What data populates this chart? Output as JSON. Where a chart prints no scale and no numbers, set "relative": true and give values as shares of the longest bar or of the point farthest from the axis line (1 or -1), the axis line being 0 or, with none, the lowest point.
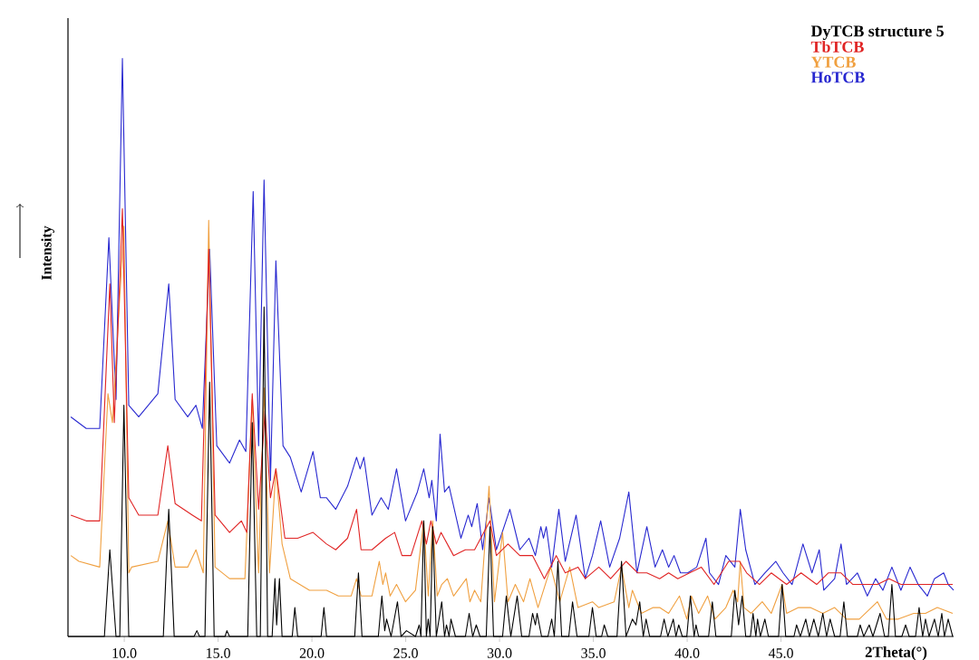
{
  "chart_data": {
    "type": "line",
    "relative": true,
    "xlabel": "2Theta(°)",
    "ylabel": "Intensity",
    "xlim": [
      7,
      54.2
    ],
    "xticks": [
      {
        "value": 10,
        "label": "10.0"
      },
      {
        "value": 15,
        "label": "15.0"
      },
      {
        "value": 20,
        "label": "20.0"
      },
      {
        "value": 25,
        "label": "25.0"
      },
      {
        "value": 30,
        "label": "30.0"
      },
      {
        "value": 35,
        "label": "35.0"
      },
      {
        "value": 40,
        "label": "40.0"
      },
      {
        "value": 45,
        "label": "45.0"
      }
    ],
    "legend": "top right",
    "series": [
      {
        "name": "DyTCB structure 5",
        "color": "#000000",
        "x": [
          7.0,
          8.94,
          9.23,
          9.56,
          9.76,
          9.98,
          10.24,
          12.08,
          12.37,
          12.66,
          13.72,
          13.87,
          14.01,
          14.3,
          14.55,
          14.79,
          15.37,
          15.47,
          15.61,
          16.58,
          16.82,
          17.06,
          17.25,
          17.45,
          17.64,
          17.88,
          18.03,
          18.12,
          18.27,
          18.41,
          18.95,
          19.09,
          19.24,
          20.49,
          20.64,
          20.78,
          22.28,
          22.48,
          22.67,
          23.54,
          23.73,
          23.88,
          23.98,
          24.22,
          24.56,
          24.75,
          25.04,
          25.52,
          25.72,
          25.81,
          25.96,
          26.1,
          26.2,
          26.3,
          26.44,
          26.63,
          26.92,
          27.07,
          27.17,
          27.31,
          27.41,
          27.65,
          28.18,
          28.38,
          28.57,
          28.76,
          28.96,
          29.29,
          29.49,
          29.68,
          30.16,
          30.36,
          30.6,
          30.94,
          31.18,
          31.57,
          31.76,
          31.91,
          32.0,
          32.24,
          32.58,
          32.78,
          32.92,
          33.11,
          33.31,
          33.69,
          33.89,
          34.13,
          34.76,
          34.95,
          35.15,
          35.44,
          35.58,
          35.77,
          36.26,
          36.5,
          36.74,
          37.08,
          37.27,
          37.47,
          37.66,
          37.81,
          38.0,
          38.58,
          38.77,
          38.97,
          39.26,
          39.4,
          39.55,
          39.74,
          39.98,
          40.17,
          40.37,
          40.47,
          40.61,
          41.14,
          41.34,
          41.53,
          42.35,
          42.54,
          42.74,
          42.93,
          43.12,
          43.37,
          43.51,
          43.66,
          43.75,
          43.9,
          44.14,
          44.33,
          44.87,
          45.06,
          45.25,
          45.69,
          45.83,
          46.03,
          46.32,
          46.51,
          46.75,
          46.99,
          47.23,
          47.43,
          47.62,
          47.86,
          48.15,
          48.35,
          48.54,
          49.07,
          49.22,
          49.41,
          49.7,
          49.9,
          50.28,
          50.52,
          50.72,
          50.91,
          51.1,
          51.44,
          51.64,
          51.83,
          52.17,
          52.36,
          52.55,
          52.7,
          52.89,
          53.18,
          53.38,
          53.57,
          53.71,
          53.91,
          54.15
        ],
        "values": [
          0,
          0,
          0.15,
          0,
          0,
          0.4,
          0,
          0,
          0.22,
          0,
          0,
          0.01,
          0,
          0,
          0.44,
          0,
          0,
          0.01,
          0,
          0,
          0.37,
          0,
          0,
          0.57,
          0,
          0,
          0.1,
          0.02,
          0.1,
          0,
          0,
          0.05,
          0,
          0,
          0.05,
          0,
          0,
          0.11,
          0,
          0,
          0.07,
          0.01,
          0.03,
          0,
          0.06,
          0,
          0.01,
          0,
          0.02,
          0,
          0.2,
          0,
          0.03,
          0,
          0.19,
          0,
          0.06,
          0,
          0.02,
          0,
          0.03,
          0,
          0,
          0.04,
          0,
          0.02,
          0,
          0,
          0.19,
          0,
          0,
          0.07,
          0,
          0.07,
          0,
          0,
          0.04,
          0.02,
          0.04,
          0,
          0,
          0.03,
          0,
          0.13,
          0,
          0,
          0.06,
          0,
          0,
          0.05,
          0,
          0,
          0.02,
          0,
          0,
          0.13,
          0,
          0.03,
          0.02,
          0.06,
          0,
          0.03,
          0,
          0,
          0.03,
          0,
          0.03,
          0,
          0.02,
          0,
          0,
          0.07,
          0,
          0.02,
          0,
          0,
          0.06,
          0,
          0,
          0.08,
          0.02,
          0.07,
          0,
          0,
          0.04,
          0,
          0.03,
          0,
          0.03,
          0,
          0,
          0.09,
          0,
          0,
          0.02,
          0,
          0.03,
          0,
          0.03,
          0,
          0.04,
          0,
          0.03,
          0,
          0,
          0.06,
          0,
          0,
          0.02,
          0,
          0.02,
          0,
          0.04,
          0,
          0,
          0.09,
          0,
          0,
          0.02,
          0,
          0,
          0.05,
          0,
          0.03,
          0,
          0.03,
          0,
          0.04,
          0,
          0.03,
          0
        ]
      },
      {
        "name": "TbTCB",
        "color": "#e02424",
        "x": [
          7.15,
          7.97,
          8.69,
          9.23,
          9.47,
          9.9,
          10.24,
          10.77,
          11.79,
          12.32,
          12.71,
          13.63,
          14.11,
          14.5,
          14.84,
          15.61,
          16.24,
          16.53,
          16.82,
          17.16,
          17.5,
          17.79,
          18.08,
          18.56,
          19.24,
          20.06,
          20.78,
          21.27,
          21.9,
          22.38,
          22.62,
          23.2,
          23.93,
          24.41,
          24.8,
          25.28,
          25.86,
          26.1,
          26.34,
          26.63,
          26.88,
          27.55,
          28.18,
          28.67,
          29.49,
          29.83,
          30.45,
          31.08,
          31.76,
          32.39,
          33.02,
          33.5,
          34.18,
          34.57,
          35.29,
          35.92,
          36.74,
          37.37,
          37.85,
          38.53,
          39.01,
          39.5,
          40.13,
          40.75,
          41.43,
          42.21,
          42.79,
          43.17,
          43.85,
          44.48,
          45.3,
          46.07,
          46.9,
          47.52,
          48.2,
          48.83,
          49.46,
          50.14,
          50.76,
          51.39,
          52.07,
          52.7,
          53.33,
          54.15
        ],
        "values": [
          0.21,
          0.2,
          0.2,
          0.61,
          0.37,
          0.74,
          0.24,
          0.21,
          0.21,
          0.33,
          0.23,
          0.21,
          0.2,
          0.67,
          0.21,
          0.18,
          0.2,
          0.18,
          0.42,
          0.22,
          0.39,
          0.24,
          0.29,
          0.17,
          0.17,
          0.18,
          0.16,
          0.15,
          0.17,
          0.22,
          0.15,
          0.15,
          0.17,
          0.18,
          0.14,
          0.14,
          0.2,
          0.16,
          0.2,
          0.16,
          0.18,
          0.14,
          0.15,
          0.15,
          0.2,
          0.14,
          0.16,
          0.14,
          0.14,
          0.1,
          0.14,
          0.11,
          0.12,
          0.1,
          0.12,
          0.1,
          0.13,
          0.11,
          0.11,
          0.1,
          0.11,
          0.1,
          0.11,
          0.12,
          0.09,
          0.13,
          0.13,
          0.11,
          0.09,
          0.11,
          0.09,
          0.11,
          0.09,
          0.11,
          0.11,
          0.09,
          0.09,
          0.09,
          0.1,
          0.09,
          0.09,
          0.09,
          0.09,
          0.09
        ]
      },
      {
        "name": "YTCB",
        "color": "#f0a040",
        "x": [
          7.15,
          7.58,
          8.69,
          9.13,
          9.37,
          9.98,
          10.24,
          10.39,
          11.79,
          12.32,
          12.71,
          13.38,
          13.82,
          14.21,
          14.5,
          14.84,
          15.61,
          16.43,
          16.82,
          17.16,
          17.45,
          17.74,
          18.08,
          18.41,
          18.85,
          19.87,
          20.78,
          21.41,
          22.09,
          22.38,
          22.62,
          23.2,
          23.59,
          23.78,
          23.93,
          24.17,
          24.51,
          24.99,
          25.52,
          25.96,
          26.2,
          26.44,
          26.68,
          26.92,
          27.22,
          27.55,
          28.23,
          28.42,
          28.67,
          29.0,
          29.44,
          29.73,
          30.16,
          30.45,
          30.84,
          31.28,
          31.62,
          32.05,
          32.73,
          33.21,
          33.74,
          34.18,
          34.95,
          35.29,
          36.11,
          36.5,
          36.89,
          37.08,
          37.56,
          38.19,
          38.53,
          39.01,
          39.59,
          39.98,
          40.22,
          40.61,
          41.09,
          41.48,
          42.06,
          42.45,
          42.69,
          42.83,
          43.03,
          43.41,
          44.0,
          44.48,
          45.06,
          45.3,
          45.93,
          46.56,
          47.23,
          47.86,
          48.49,
          49.17,
          50.14,
          50.62,
          51.25,
          52.07,
          52.7,
          53.33,
          54.15
        ],
        "values": [
          0.14,
          0.13,
          0.12,
          0.42,
          0.37,
          0.71,
          0.11,
          0.12,
          0.13,
          0.2,
          0.12,
          0.12,
          0.15,
          0.11,
          0.72,
          0.12,
          0.1,
          0.1,
          0.41,
          0.11,
          0.43,
          0.11,
          0.29,
          0.16,
          0.1,
          0.08,
          0.08,
          0.07,
          0.07,
          0.1,
          0.07,
          0.07,
          0.13,
          0.09,
          0.11,
          0.07,
          0.09,
          0.06,
          0.08,
          0.2,
          0.07,
          0.2,
          0.07,
          0.09,
          0.1,
          0.07,
          0.1,
          0.06,
          0.08,
          0.06,
          0.26,
          0.06,
          0.18,
          0.06,
          0.09,
          0.06,
          0.1,
          0.05,
          0.12,
          0.06,
          0.12,
          0.05,
          0.06,
          0.05,
          0.06,
          0.12,
          0.05,
          0.08,
          0.04,
          0.05,
          0.05,
          0.04,
          0.07,
          0.03,
          0.07,
          0.04,
          0.07,
          0.03,
          0.05,
          0.08,
          0.06,
          0.13,
          0.05,
          0.04,
          0.06,
          0.04,
          0.09,
          0.04,
          0.05,
          0.05,
          0.04,
          0.05,
          0.03,
          0.03,
          0.06,
          0.03,
          0.03,
          0.04,
          0.04,
          0.05,
          0.04
        ]
      },
      {
        "name": "HoTCB",
        "color": "#2828d0",
        "x": [
          7.15,
          7.97,
          8.69,
          9.18,
          9.56,
          9.9,
          10.24,
          10.77,
          11.79,
          12.37,
          12.71,
          13.38,
          13.82,
          14.16,
          14.55,
          14.93,
          15.61,
          16.14,
          16.48,
          16.87,
          17.16,
          17.45,
          17.79,
          18.08,
          18.46,
          18.85,
          19.43,
          20.06,
          20.45,
          20.78,
          21.27,
          21.9,
          22.38,
          22.57,
          22.77,
          23.2,
          23.69,
          24.07,
          24.51,
          24.99,
          25.62,
          25.96,
          26.25,
          26.39,
          26.63,
          26.83,
          27.07,
          27.31,
          27.94,
          28.33,
          28.52,
          28.81,
          29.1,
          29.44,
          29.83,
          30.55,
          31.08,
          31.57,
          31.91,
          32.2,
          32.34,
          32.49,
          32.78,
          33.16,
          33.5,
          34.08,
          34.57,
          34.95,
          35.39,
          35.87,
          36.4,
          36.89,
          37.32,
          37.85,
          38.29,
          38.68,
          39.01,
          39.3,
          39.64,
          40.03,
          40.51,
          41.0,
          41.19,
          41.67,
          42.06,
          42.54,
          42.83,
          43.12,
          43.61,
          44.14,
          44.72,
          45.11,
          45.59,
          46.17,
          46.65,
          47.04,
          47.28,
          47.86,
          48.2,
          48.49,
          49.07,
          49.6,
          50.04,
          50.43,
          50.91,
          51.39,
          51.88,
          52.31,
          52.8,
          53.18,
          53.67,
          53.91,
          54.2
        ],
        "values": [
          0.38,
          0.36,
          0.36,
          0.69,
          0.41,
          1.0,
          0.4,
          0.38,
          0.42,
          0.61,
          0.41,
          0.38,
          0.4,
          0.36,
          0.67,
          0.33,
          0.3,
          0.34,
          0.32,
          0.77,
          0.33,
          0.79,
          0.27,
          0.65,
          0.33,
          0.31,
          0.25,
          0.32,
          0.24,
          0.24,
          0.22,
          0.26,
          0.31,
          0.29,
          0.31,
          0.21,
          0.24,
          0.22,
          0.29,
          0.2,
          0.25,
          0.29,
          0.24,
          0.27,
          0.2,
          0.35,
          0.25,
          0.26,
          0.17,
          0.21,
          0.19,
          0.23,
          0.15,
          0.24,
          0.15,
          0.22,
          0.15,
          0.17,
          0.14,
          0.19,
          0.17,
          0.19,
          0.12,
          0.22,
          0.13,
          0.21,
          0.1,
          0.14,
          0.2,
          0.12,
          0.17,
          0.25,
          0.11,
          0.19,
          0.12,
          0.15,
          0.12,
          0.14,
          0.11,
          0.11,
          0.12,
          0.17,
          0.11,
          0.09,
          0.14,
          0.12,
          0.22,
          0.15,
          0.09,
          0.11,
          0.13,
          0.11,
          0.09,
          0.16,
          0.11,
          0.15,
          0.08,
          0.1,
          0.16,
          0.09,
          0.11,
          0.07,
          0.1,
          0.08,
          0.12,
          0.08,
          0.12,
          0.09,
          0.07,
          0.1,
          0.11,
          0.09,
          0.08
        ]
      }
    ]
  }
}
